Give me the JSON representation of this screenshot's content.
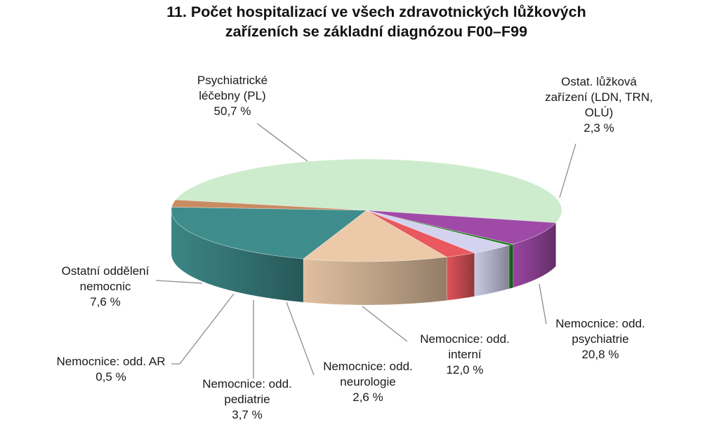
{
  "chart_data": {
    "type": "pie",
    "title_lines": [
      "11.  Počet hospitalizací ve všech zdravotnických lůžkových",
      "zařízeních se základní diagnózou F00–F99"
    ],
    "slices": [
      {
        "key": "pl",
        "label_lines": [
          "Psychiatrické",
          "léčebny (PL)"
        ],
        "value": 50.7,
        "value_text": "50,7 %",
        "color": "#cdeccd"
      },
      {
        "key": "ostat",
        "label_lines": [
          "Ostat. lůžková",
          "zařízení (LDN, TRN,",
          "OLÚ)"
        ],
        "value": 2.3,
        "value_text": "2,3 %",
        "color": "#c98b62"
      },
      {
        "key": "psych",
        "label_lines": [
          "Nemocnice: odd.",
          "psychiatrie"
        ],
        "value": 20.8,
        "value_text": "20,8 %",
        "color": "#3f8c8c"
      },
      {
        "key": "int",
        "label_lines": [
          "Nemocnice: odd.",
          "interní"
        ],
        "value": 12.0,
        "value_text": "12,0 %",
        "color": "#ecc9a8"
      },
      {
        "key": "neuro",
        "label_lines": [
          "Nemocnice: odd.",
          "neurologie"
        ],
        "value": 2.6,
        "value_text": "2,6 %",
        "color": "#e8585e"
      },
      {
        "key": "ped",
        "label_lines": [
          "Nemocnice: odd.",
          "pediatrie"
        ],
        "value": 3.7,
        "value_text": "3,7 %",
        "color": "#d4d2ef"
      },
      {
        "key": "ar",
        "label_lines": [
          "Nemocnice: odd. AR"
        ],
        "value": 0.5,
        "value_text": "0,5 %",
        "color": "#1f7a1f"
      },
      {
        "key": "ostnem",
        "label_lines": [
          "Ostatní oddělení",
          "nemocnic"
        ],
        "value": 7.6,
        "value_text": "7,6 %",
        "color": "#a04aa8"
      }
    ]
  }
}
